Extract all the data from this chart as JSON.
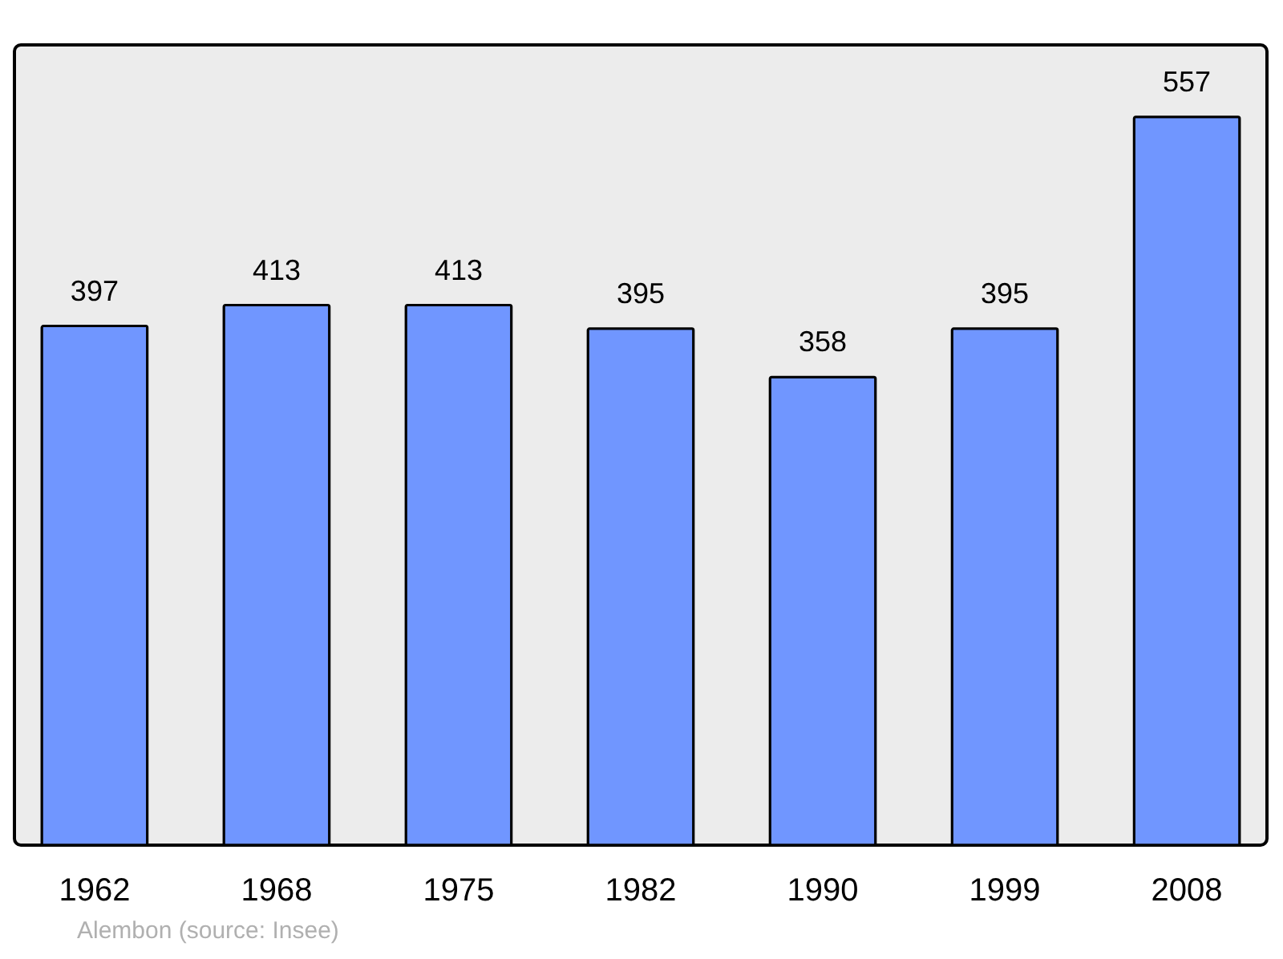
{
  "chart_data": {
    "type": "bar",
    "categories": [
      "1962",
      "1968",
      "1975",
      "1982",
      "1990",
      "1999",
      "2008"
    ],
    "values": [
      397,
      413,
      413,
      395,
      358,
      395,
      557
    ],
    "color": "#7096ff",
    "ylim": [
      0,
      612
    ],
    "data_labels": true,
    "grid": false,
    "annotations": [
      "Alembon    (source: Insee)"
    ]
  }
}
